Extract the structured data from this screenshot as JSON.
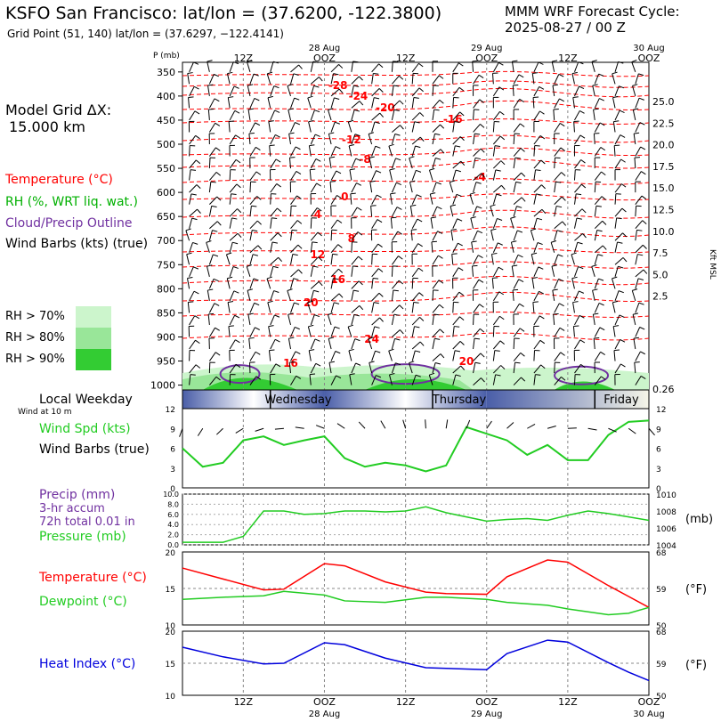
{
  "header": {
    "title": "KSFO San Francisco:  lat/lon = (37.6200, -122.3800)",
    "subtitle": "Grid Point (51, 140) lat/lon = (37.6297, −122.4141)",
    "cycle_line1": "MMM WRF Forecast Cycle:",
    "cycle_line2": "2025-08-27 / 00  Z"
  },
  "left_panel": {
    "grid_label": "Model Grid ΔX:",
    "grid_value": "15.000 km",
    "legend_temperature": "Temperature (°C)",
    "legend_rh": "RH (%, WRT liq. wat.)",
    "legend_cloud": "Cloud/Precip Outline",
    "legend_wind": "Wind Barbs (kts) (true)",
    "rh_levels": [
      "RH > 70%",
      "RH > 80%",
      "RH > 90%"
    ],
    "local_weekday": "Local Weekday",
    "wind_at": "Wind at 10 m",
    "wind_spd_label": "Wind Spd (kts)",
    "wind_barbs_label": "Wind Barbs (true)",
    "precip_label": "Precip (mm)",
    "precip_accum": "3-hr accum",
    "precip_total": "72h total 0.01 in",
    "pressure_label": "Pressure (mb)",
    "temp_label": "Temperature (°C)",
    "dewpoint_label": "Dewpoint (°C)",
    "heat_label": "Heat Index (°C)"
  },
  "colors": {
    "temperature": "#ff0000",
    "rh": "#00c000",
    "cloud": "#7030a0",
    "wind_line": "#22cc22",
    "heat": "#0000dd",
    "rh70": "#ccf5cc",
    "rh80": "#99e699",
    "rh90": "#33cc33",
    "weekday_blue": "#4a5ea8"
  },
  "time_axis": {
    "top_labels": [
      {
        "main": "12Z",
        "date": ""
      },
      {
        "main": "OOZ",
        "date": "28 Aug"
      },
      {
        "main": "12Z",
        "date": ""
      },
      {
        "main": "OOZ",
        "date": "29 Aug"
      },
      {
        "main": "12Z",
        "date": ""
      },
      {
        "main": "OOZ",
        "date": "30 Aug"
      }
    ],
    "weekdays": [
      "Wednesday",
      "Thursday",
      "Friday"
    ]
  },
  "chart_data": [
    {
      "type": "heatmap",
      "left_axis_label": "P (mb)",
      "right_axis_label": "Kft MSL",
      "pressure_levels": [
        350,
        400,
        450,
        500,
        550,
        600,
        650,
        700,
        750,
        800,
        850,
        900,
        950,
        1000
      ],
      "ylim": [
        330,
        1010
      ],
      "right_ticks": [
        "25.0",
        "22.5",
        "20.0",
        "17.5",
        "15.0",
        "12.5",
        "10.0",
        "7.5",
        "5.0",
        "2.5",
        "0.26"
      ],
      "temperature_labels": [
        "-28",
        "-24",
        "-20",
        "-16",
        "-12",
        "-8",
        "-4",
        "0",
        "4",
        "8",
        "12",
        "16",
        "20",
        "24",
        "16",
        "20"
      ],
      "rh_shading": "RH > 70%, > 80%, > 90% near surface",
      "legend": [
        "Temperature (°C)",
        "RH (%, WRT liq. wat.)",
        "Cloud/Precip Outline",
        "Wind Barbs (kts) (true)"
      ]
    },
    {
      "type": "line",
      "xlim_hours": [
        3,
        72
      ],
      "x_hours": [
        3,
        6,
        9,
        12,
        15,
        18,
        21,
        24,
        27,
        30,
        33,
        36,
        39,
        42,
        45,
        48,
        51,
        54,
        57,
        60,
        63,
        66,
        69,
        72
      ],
      "series": [
        {
          "name": "Wind Spd (kts)",
          "values": [
            6.0,
            3.2,
            3.8,
            7.2,
            7.8,
            6.5,
            7.2,
            7.8,
            4.5,
            3.2,
            3.8,
            3.4,
            2.5,
            3.4,
            9.2,
            8.2,
            7.2,
            5.0,
            6.5,
            4.2,
            4.2,
            8.0,
            10.0,
            10.2
          ]
        }
      ],
      "ylim": [
        0,
        12
      ],
      "yticks": [
        0,
        3,
        6,
        9,
        12
      ]
    },
    {
      "type": "line",
      "xlim_hours": [
        3,
        72
      ],
      "precip_ylim": [
        0,
        10
      ],
      "precip_yticks": [
        0,
        2,
        4,
        6,
        8,
        10
      ],
      "pressure_ylim": [
        1004,
        1010
      ],
      "pressure_yticks": [
        1004,
        1006,
        1008,
        1010
      ],
      "y_unit": "(mb)",
      "series": [
        {
          "name": "Pressure (mb)",
          "x_hours": [
            3,
            6,
            9,
            12,
            15,
            18,
            21,
            24,
            27,
            30,
            33,
            36,
            39,
            42,
            45,
            48,
            51,
            54,
            57,
            60,
            63,
            66,
            69,
            72
          ],
          "values": [
            1004.3,
            1004.3,
            1004.3,
            1005.0,
            1008.0,
            1008.0,
            1007.6,
            1007.7,
            1008.0,
            1008.0,
            1007.9,
            1008.0,
            1008.5,
            1007.8,
            1007.3,
            1006.8,
            1007.0,
            1007.1,
            1006.9,
            1007.5,
            1008.0,
            1007.7,
            1007.3,
            1006.9
          ]
        },
        {
          "name": "Precip (mm)",
          "x_hours": [
            54,
            63
          ],
          "values": [
            0.0,
            0.1
          ]
        }
      ]
    },
    {
      "type": "line",
      "xlim_hours": [
        3,
        72
      ],
      "ylim": [
        10,
        20
      ],
      "yticks_c": [
        10,
        15,
        20
      ],
      "yticks_f": [
        50,
        59,
        68
      ],
      "y_unit_right": "(°F)",
      "series": [
        {
          "name": "Temperature (°C)",
          "x_hours": [
            3,
            9,
            15,
            18,
            24,
            27,
            33,
            39,
            42,
            48,
            51,
            57,
            60,
            66,
            69,
            72
          ],
          "values": [
            17.8,
            16.3,
            14.8,
            14.9,
            18.4,
            18.1,
            15.9,
            14.5,
            14.3,
            14.2,
            16.6,
            18.9,
            18.6,
            15.4,
            13.9,
            12.4
          ]
        },
        {
          "name": "Dewpoint (°C)",
          "x_hours": [
            3,
            9,
            15,
            18,
            24,
            27,
            33,
            39,
            42,
            48,
            51,
            57,
            60,
            66,
            69,
            72
          ],
          "values": [
            13.5,
            13.8,
            14.0,
            14.6,
            14.1,
            13.3,
            13.1,
            13.8,
            13.8,
            13.5,
            13.1,
            12.7,
            12.2,
            11.4,
            11.6,
            12.4
          ]
        }
      ]
    },
    {
      "type": "line",
      "xlim_hours": [
        3,
        72
      ],
      "ylim": [
        10,
        20
      ],
      "yticks_c": [
        10,
        15,
        20
      ],
      "yticks_f": [
        50,
        59,
        68
      ],
      "y_unit_right": "(°F)",
      "series": [
        {
          "name": "Heat Index (°C)",
          "x_hours": [
            3,
            9,
            15,
            18,
            24,
            27,
            33,
            39,
            42,
            48,
            51,
            57,
            60,
            66,
            69,
            72
          ],
          "values": [
            17.5,
            16.0,
            14.9,
            15.0,
            18.2,
            17.9,
            15.8,
            14.3,
            14.2,
            14.0,
            16.5,
            18.6,
            18.3,
            15.1,
            13.6,
            12.3
          ]
        }
      ]
    }
  ]
}
